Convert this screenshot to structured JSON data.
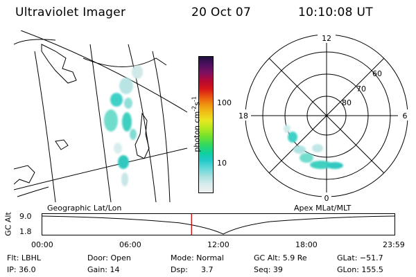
{
  "header": {
    "title": "Ultraviolet Imager",
    "date": "20 Oct 07",
    "time": "10:10:08 UT"
  },
  "colorbar": {
    "label": "photon cm",
    "label_sup1": "-2",
    "label_mid": "s",
    "label_sup2": "-1",
    "ticks": [
      "100",
      "10"
    ],
    "colors": [
      "#f0f0f0",
      "#d8ecec",
      "#a8e0e0",
      "#60d8d8",
      "#20c8c8",
      "#10d0a0",
      "#30d860",
      "#70e030",
      "#b0e820",
      "#e8e820",
      "#f0c018",
      "#f09010",
      "#e85010",
      "#d81818",
      "#b80830",
      "#801060",
      "#501060",
      "#201040"
    ]
  },
  "map_labels": {
    "left": "Geographic Lat/Lon",
    "right": "Apex MLat/MLT"
  },
  "polar": {
    "hour_labels": {
      "top": "12",
      "left": "18",
      "right": "6",
      "bottom": "0"
    },
    "lat_labels": [
      "60",
      "70",
      "80"
    ]
  },
  "timeline": {
    "axis_title": "GC Alt",
    "y_ticks": [
      "9.0",
      "1.8"
    ],
    "x_ticks": [
      "00:00",
      "06:00",
      "12:00",
      "18:00",
      "23:59"
    ],
    "current_time_hours": 10.17,
    "marker_color": "#cc0000"
  },
  "info": {
    "filter": "Flt: LBHL",
    "door": "Door: Open",
    "mode": "Mode: Normal",
    "gc_alt": "GC Alt: 5.9 Re",
    "glat": "GLat: −51.7",
    "ip": "IP: 36.0",
    "gain": "Gain: 14",
    "dsp_label": "Dsp:",
    "dsp_value": "3.7",
    "seq": "Seq: 39",
    "glon": "GLon: 155.5"
  }
}
